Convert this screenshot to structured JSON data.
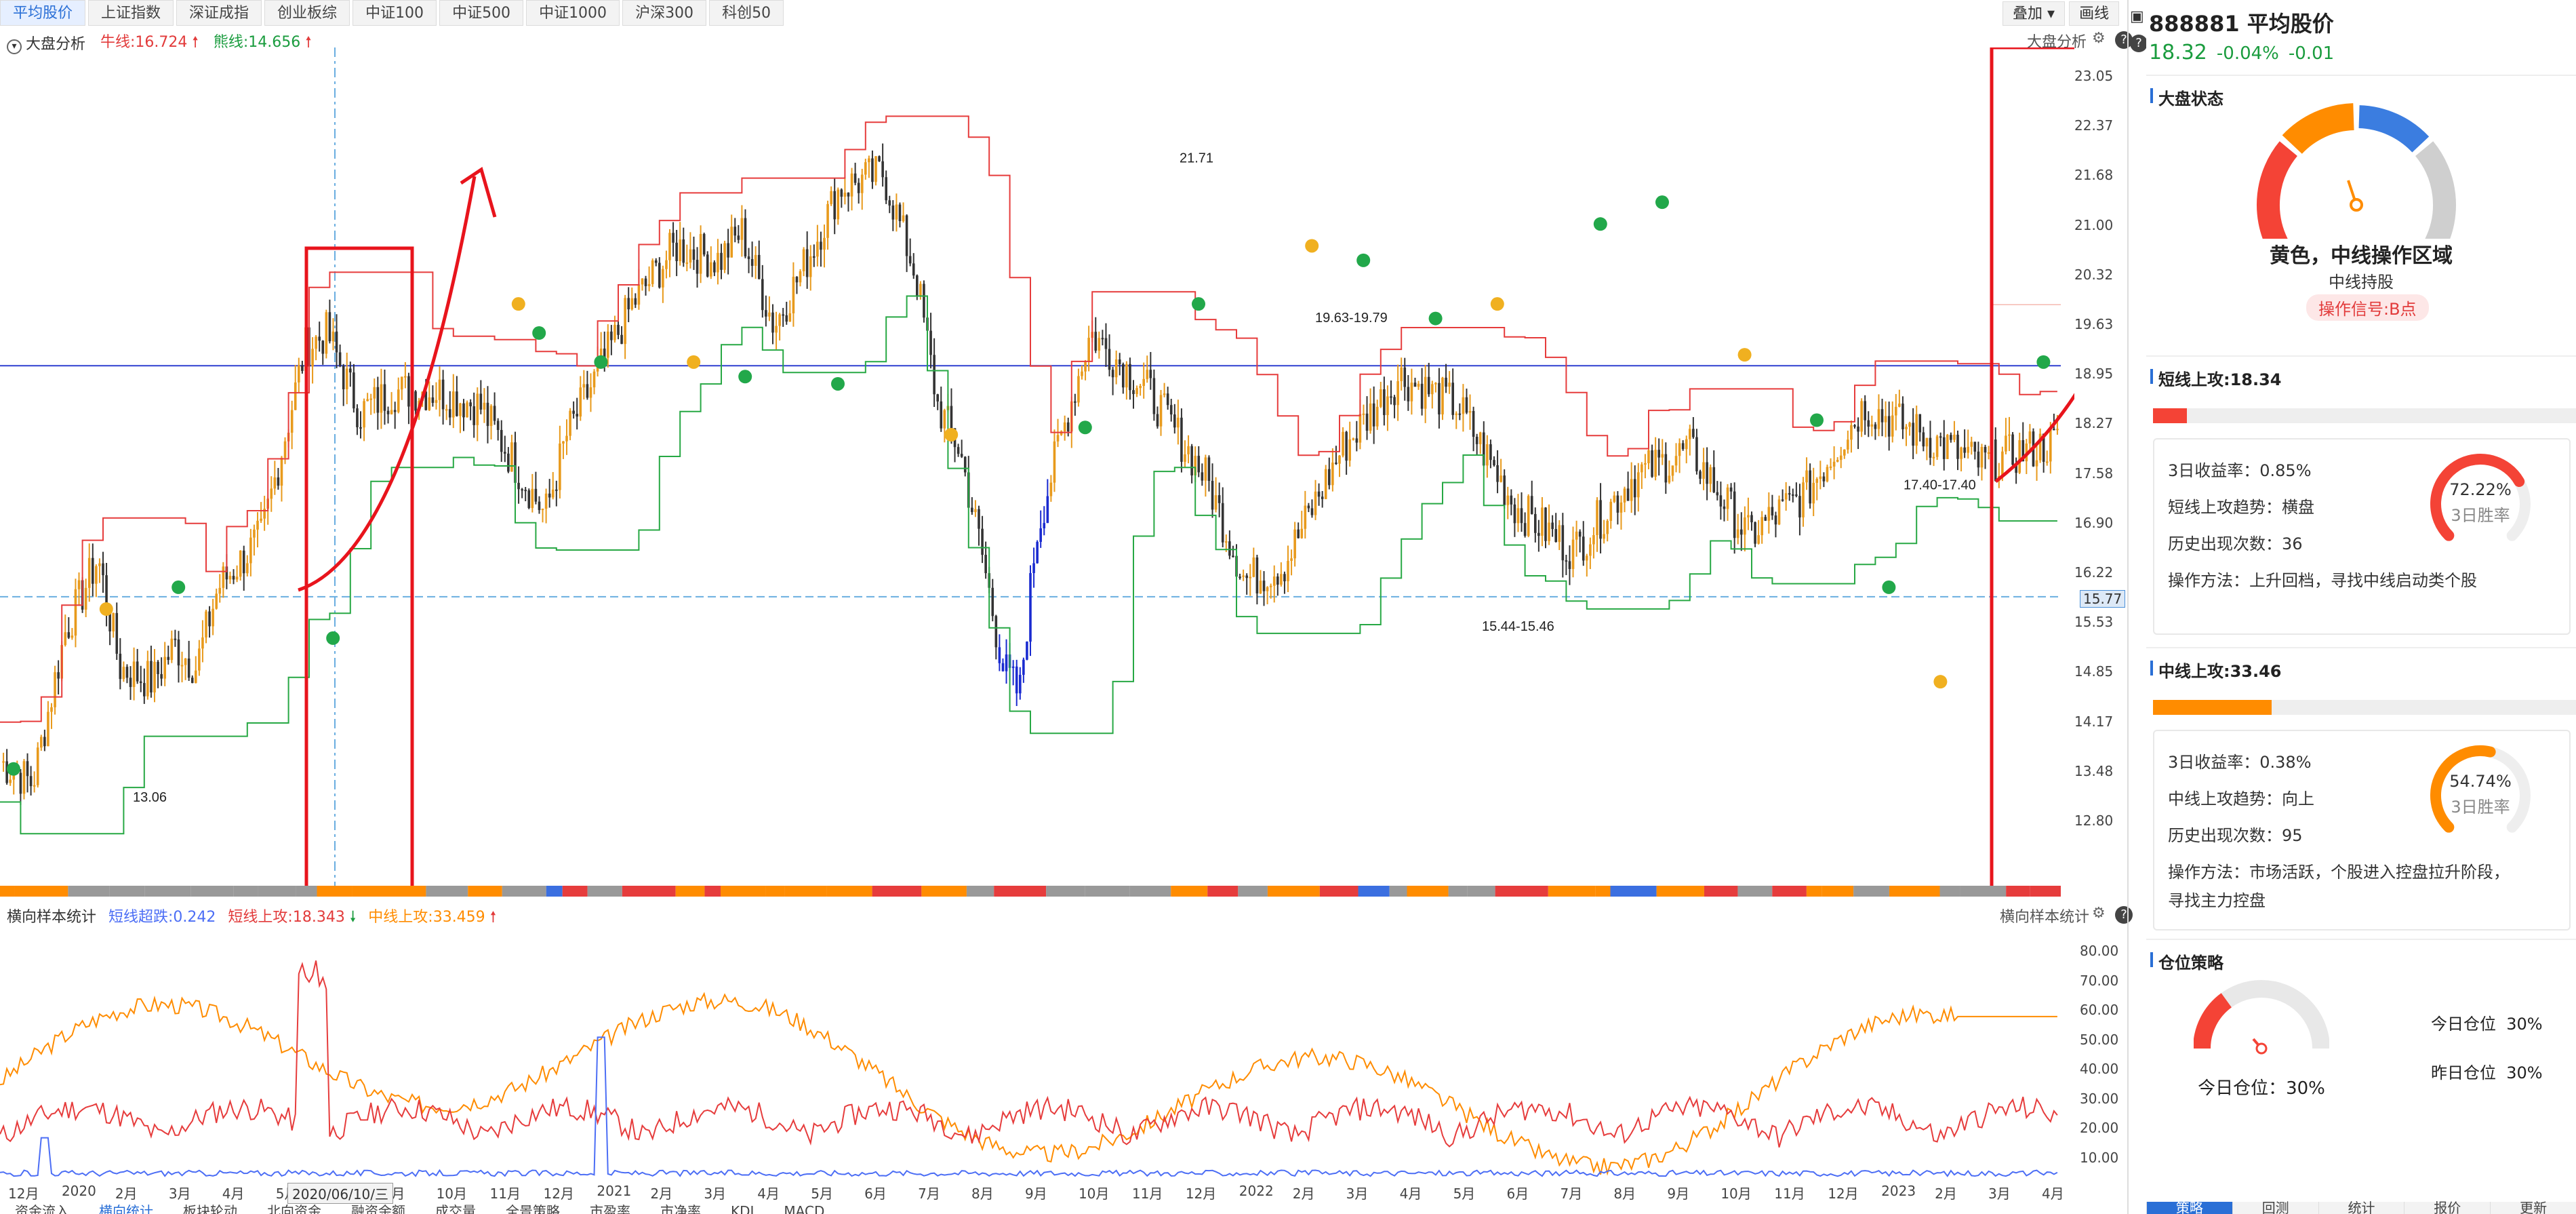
{
  "top_tabs": [
    {
      "label": "平均股价",
      "active": true
    },
    {
      "label": "上证指数"
    },
    {
      "label": "深证成指"
    },
    {
      "label": "创业板综"
    },
    {
      "label": "中证100"
    },
    {
      "label": "中证500"
    },
    {
      "label": "中证1000"
    },
    {
      "label": "沪深300"
    },
    {
      "label": "科创50"
    }
  ],
  "tools": {
    "overlay": "叠加",
    "draw": "画线"
  },
  "main_legend": {
    "name": "大盘分析",
    "bull": "牛线:16.724",
    "bear": "熊线:14.656",
    "right_label": "大盘分析"
  },
  "y_axis": [
    "23.05",
    "22.37",
    "21.68",
    "21.00",
    "20.32",
    "19.63",
    "18.95",
    "18.27",
    "17.58",
    "16.90",
    "16.22",
    "15.53",
    "14.85",
    "14.17",
    "13.48",
    "12.80"
  ],
  "y_badge": "15.77",
  "annotations": [
    "21.71",
    "19.63-19.79",
    "17.40-17.40",
    "15.44-15.46",
    "13.06"
  ],
  "sub_legend": {
    "name": "横向样本统计",
    "a": "短线超跌:0.242",
    "b": "短线上攻:18.343",
    "c": "中线上攻:33.459",
    "right_label": "横向样本统计"
  },
  "sub_y_axis": [
    "80.00",
    "70.00",
    "60.00",
    "50.00",
    "40.00",
    "30.00",
    "20.00",
    "10.00"
  ],
  "x_axis": [
    "12月",
    "2020",
    "2月",
    "3月",
    "4月",
    "5月",
    "8月",
    "9月",
    "10月",
    "11月",
    "12月",
    "2021",
    "2月",
    "3月",
    "4月",
    "5月",
    "6月",
    "7月",
    "8月",
    "9月",
    "10月",
    "11月",
    "12月",
    "2022",
    "2月",
    "3月",
    "4月",
    "5月",
    "6月",
    "7月",
    "8月",
    "9月",
    "10月",
    "11月",
    "12月",
    "2023",
    "2月",
    "3月",
    "4月"
  ],
  "x_cursor_date": "2020/06/10/三",
  "bottom_tabs": [
    {
      "label": "资金流入"
    },
    {
      "label": "横向统计",
      "active": true
    },
    {
      "label": "板块轮动"
    },
    {
      "label": "北向资金"
    },
    {
      "label": "融资余额"
    },
    {
      "label": "成交量"
    },
    {
      "label": "全景策略"
    },
    {
      "label": "市盈率"
    },
    {
      "label": "市净率"
    },
    {
      "label": "KDJ"
    },
    {
      "label": "MACD"
    }
  ],
  "stock": {
    "code_name": "888881 平均股价",
    "price": "18.32",
    "change_pct": "-0.04%",
    "change": "-0.01"
  },
  "market_state": {
    "title": "大盘状态",
    "zone": "黄色，中线操作区域",
    "advice": "中线持股",
    "signal": "操作信号:B点",
    "level": 0.5
  },
  "short_attack": {
    "title": "短线上攻:18.34",
    "bar_fill": 0.08,
    "bar_color": "#f44336",
    "ret3": "3日收益率：0.85%",
    "trend": "短线上攻趋势：横盘",
    "count": "历史出现次数：36",
    "method": "操作方法：上升回档，寻找中线启动类个股",
    "win_rate": "72.22%",
    "win_label": "3日胜率",
    "win_value": 0.7222,
    "ring_color": "#f44336"
  },
  "mid_attack": {
    "title": "中线上攻:33.46",
    "bar_fill": 0.28,
    "bar_color": "#ff8c00",
    "ret3": "3日收益率：0.38%",
    "trend": "中线上攻趋势：向上",
    "count": "历史出现次数：95",
    "method1": "操作方法：市场活跃，个股进入控盘拉升阶段，",
    "method2": "寻找主力控盘",
    "win_rate": "54.74%",
    "win_label": "3日胜率",
    "win_value": 0.5474,
    "ring_color": "#ff8c00"
  },
  "position": {
    "title": "仓位策略",
    "today": "今日仓位：30%",
    "today_label": "今日仓位",
    "today_value": "30%",
    "yesterday_label": "昨日仓位",
    "yesterday_value": "30%",
    "level": 0.3
  },
  "panel_tabs": [
    {
      "label": "策略",
      "active": true
    },
    {
      "label": "回测"
    },
    {
      "label": "统计"
    },
    {
      "label": "报价"
    },
    {
      "label": "更新"
    }
  ]
}
